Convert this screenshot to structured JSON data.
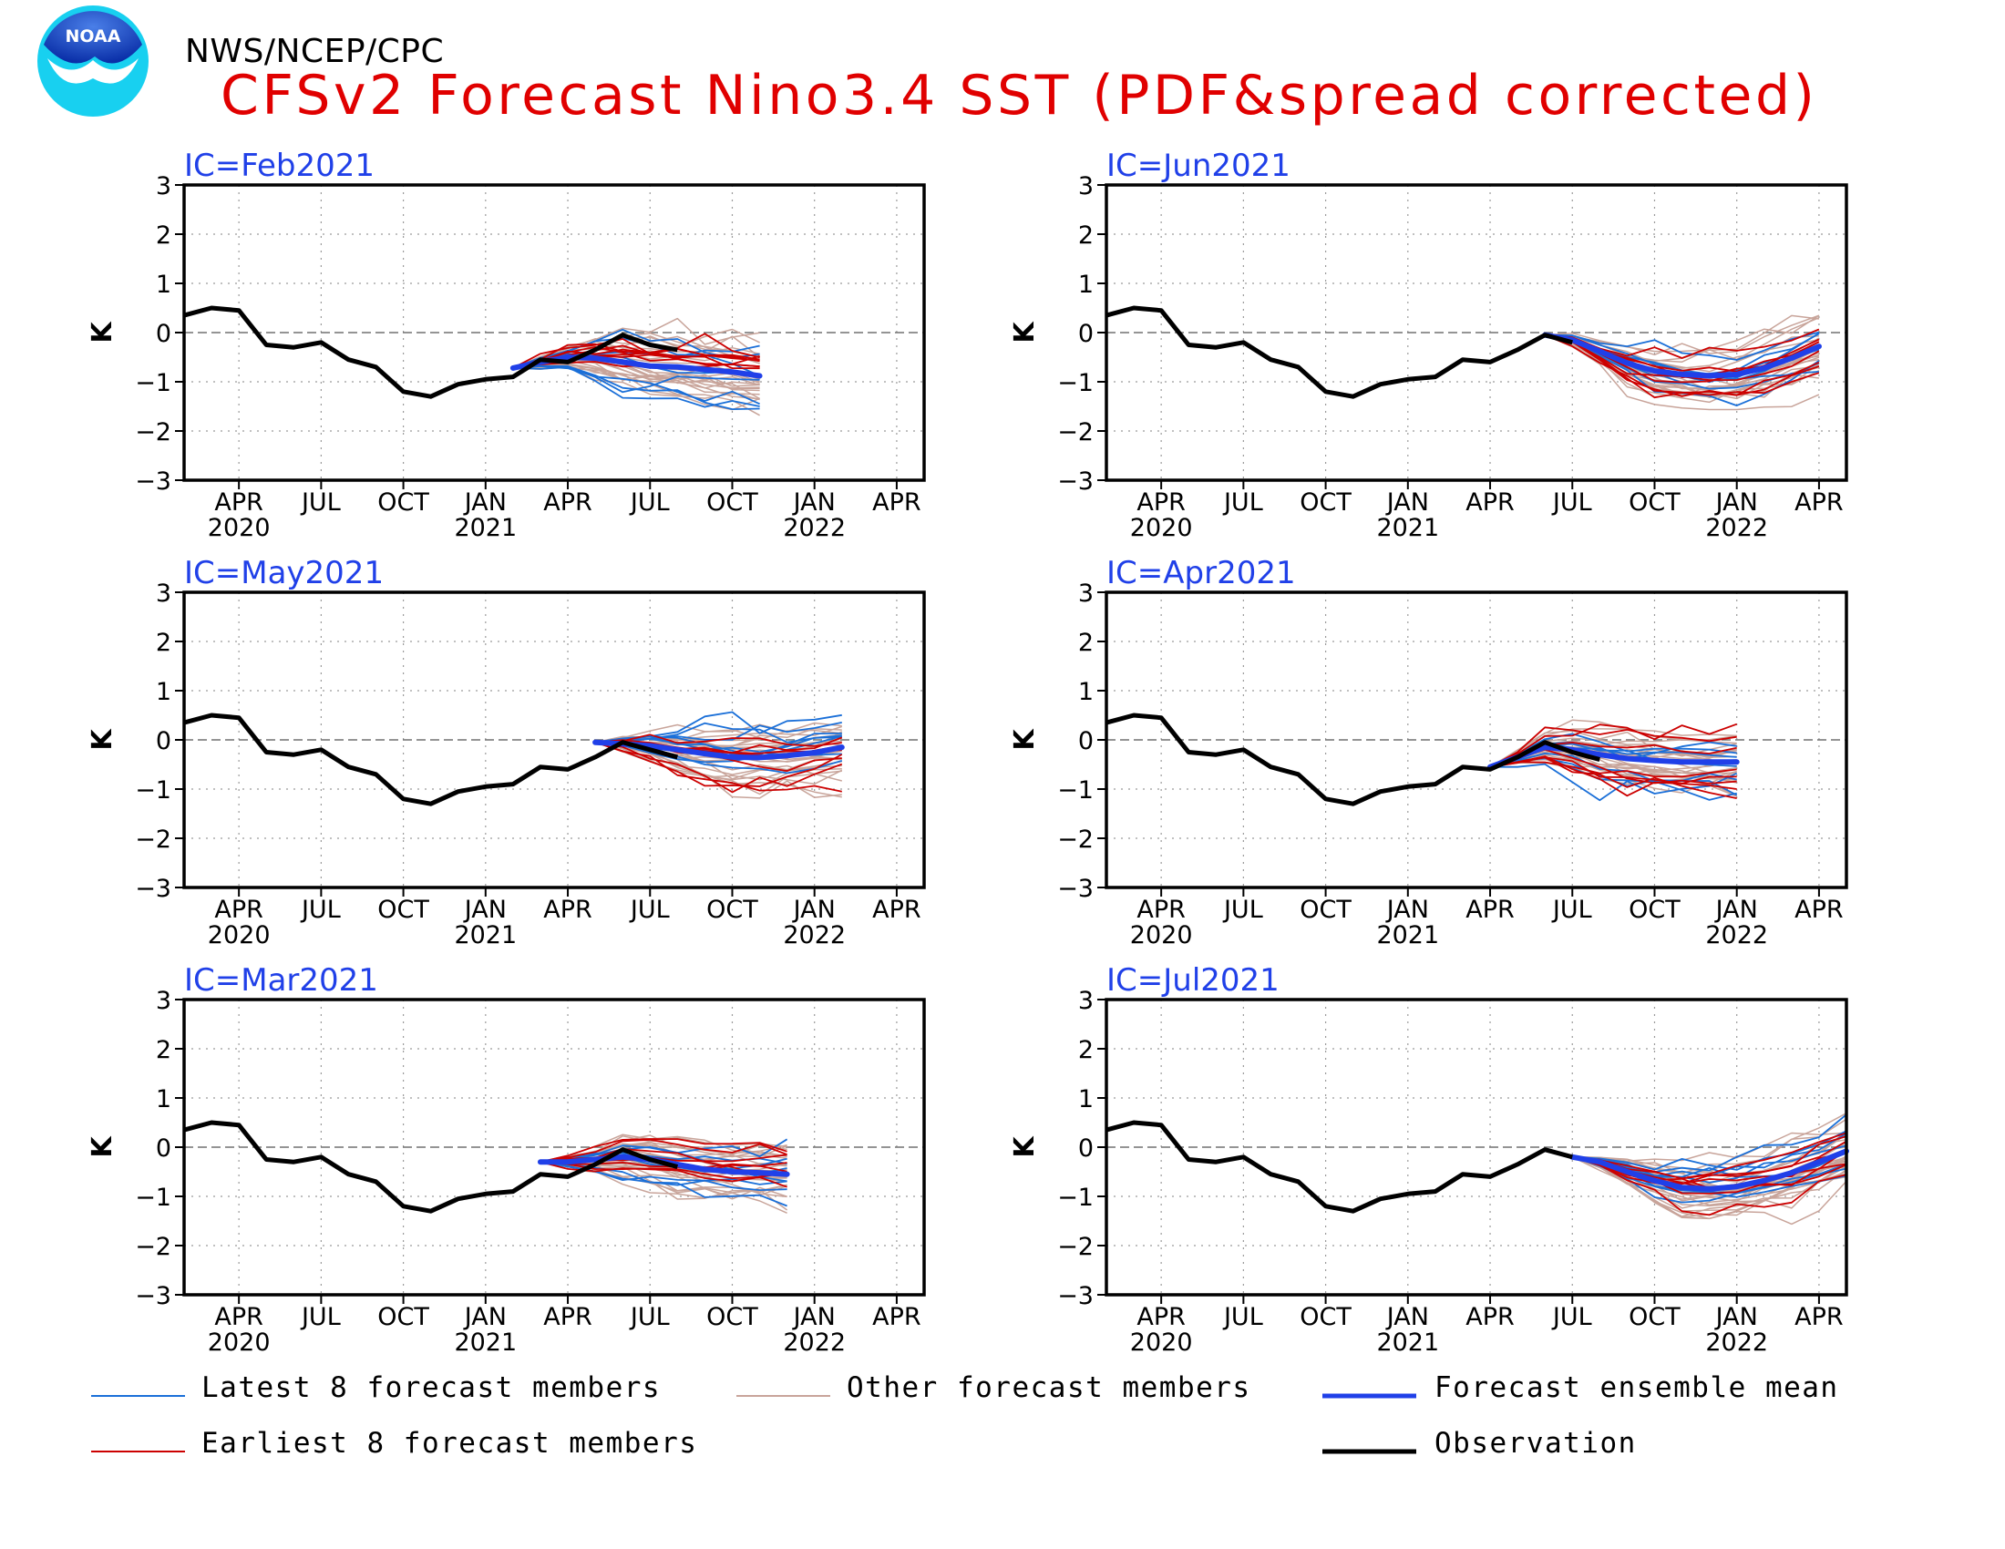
{
  "header": {
    "agency": "NWS/NCEP/CPC",
    "title": "CFSv2 Forecast Nino3.4 SST (PDF&spread corrected)",
    "logo_text": "NOAA"
  },
  "colors": {
    "observation": "#000000",
    "ensemble_mean": "#2040e8",
    "latest_members": "#1a6fd8",
    "earliest_members": "#cc0000",
    "other_members": "#c8a49a",
    "title": "#e00000",
    "panel_label": "#2040e8"
  },
  "legend": {
    "latest": "Latest 8 forecast members",
    "other": "Other forecast members",
    "mean": "Forecast ensemble mean",
    "earliest": "Earliest 8 forecast members",
    "obs": "Observation"
  },
  "axes": {
    "ylabel": "K",
    "ylim": [
      -3,
      3
    ],
    "yticks": [
      "3",
      "2",
      "1",
      "0",
      "−1",
      "−2",
      "−3"
    ],
    "xticks": [
      {
        "month": "APR",
        "year": "2020"
      },
      {
        "month": "JUL",
        "year": ""
      },
      {
        "month": "OCT",
        "year": ""
      },
      {
        "month": "JAN",
        "year": "2021"
      },
      {
        "month": "APR",
        "year": ""
      },
      {
        "month": "JUL",
        "year": ""
      },
      {
        "month": "OCT",
        "year": ""
      },
      {
        "month": "JAN",
        "year": "2022"
      },
      {
        "month": "APR",
        "year": ""
      }
    ],
    "x_month_range": [
      "Feb 2020",
      "May 2022"
    ],
    "grid": "dotted"
  },
  "chart_data": {
    "type": "line",
    "observation": {
      "x": [
        "Feb 2020",
        "Mar 2020",
        "Apr 2020",
        "May 2020",
        "Jun 2020",
        "Jul 2020",
        "Aug 2020",
        "Sep 2020",
        "Oct 2020",
        "Nov 2020",
        "Dec 2020",
        "Jan 2021",
        "Feb 2021",
        "Mar 2021",
        "Apr 2021",
        "May 2021",
        "Jun 2021",
        "Jul 2021"
      ],
      "values": [
        0.35,
        0.5,
        0.45,
        -0.25,
        -0.3,
        -0.2,
        -0.55,
        -0.7,
        -1.2,
        -1.3,
        -1.05,
        -0.95,
        -0.9,
        -0.55,
        -0.6,
        -0.35,
        -0.05,
        -0.2
      ]
    },
    "panels": [
      {
        "label": "IC=Feb2021",
        "obs_end": "Aug 2021",
        "obs_tail": [
          -0.6,
          -0.35,
          -0.05,
          -0.25,
          -0.35
        ],
        "mean_start": "Feb 2021",
        "mean": [
          -0.72,
          -0.6,
          -0.5,
          -0.52,
          -0.6,
          -0.68,
          -0.7,
          -0.75,
          -0.8,
          -0.88
        ]
      },
      {
        "label": "IC=May2021",
        "obs_end": "Aug 2021",
        "obs_tail": [
          -0.05,
          -0.2,
          -0.35
        ],
        "mean_start": "May 2021",
        "mean": [
          -0.05,
          -0.08,
          -0.12,
          -0.2,
          -0.28,
          -0.35,
          -0.36,
          -0.32,
          -0.26,
          -0.15
        ]
      },
      {
        "label": "IC=Mar2021",
        "obs_end": "Aug 2021",
        "obs_tail": [
          -0.35,
          -0.05,
          -0.25,
          -0.4
        ],
        "mean_start": "Mar 2021",
        "mean": [
          -0.3,
          -0.3,
          -0.25,
          -0.2,
          -0.25,
          -0.35,
          -0.45,
          -0.5,
          -0.52,
          -0.55
        ]
      },
      {
        "label": "IC=Jun2021",
        "obs_end": "Jul 2021",
        "obs_tail": [],
        "mean_start": "Jun 2021",
        "mean": [
          -0.05,
          -0.15,
          -0.38,
          -0.62,
          -0.78,
          -0.85,
          -0.88,
          -0.85,
          -0.72,
          -0.52,
          -0.28
        ]
      },
      {
        "label": "IC=Apr2021",
        "obs_end": "Aug 2021",
        "obs_tail": [
          -0.35,
          -0.05,
          -0.25,
          -0.4
        ],
        "mean_start": "Apr 2021",
        "mean": [
          -0.55,
          -0.35,
          -0.15,
          -0.2,
          -0.3,
          -0.38,
          -0.42,
          -0.45,
          -0.45,
          -0.45
        ]
      },
      {
        "label": "IC=Jul2021",
        "obs_end": "Jul 2021",
        "obs_tail": [],
        "mean_start": "Jul 2021",
        "mean": [
          -0.2,
          -0.3,
          -0.5,
          -0.68,
          -0.82,
          -0.85,
          -0.8,
          -0.68,
          -0.52,
          -0.3,
          -0.08
        ]
      }
    ]
  }
}
